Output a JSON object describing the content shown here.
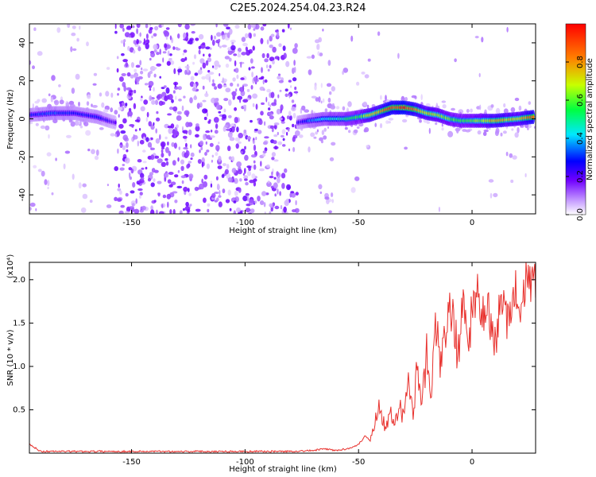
{
  "title": "C2E5.2024.254.04.23.R24",
  "chart_data": [
    {
      "type": "heatmap",
      "xlabel": "Height of straight line (km)",
      "ylabel": "Frequency (Hz)",
      "xlim": [
        -195,
        28
      ],
      "ylim": [
        -50,
        50
      ],
      "x_ticks": [
        -150,
        -100,
        -50,
        0
      ],
      "y_ticks": [
        -40,
        -20,
        0,
        20,
        40
      ],
      "grid": false,
      "noise_region_km": [
        -157,
        -77
      ],
      "ridge": {
        "x": [
          -195,
          -185,
          -175,
          -165,
          -160,
          -157,
          -77,
          -72,
          -65,
          -55,
          -50,
          -45,
          -40,
          -35,
          -30,
          -25,
          -20,
          -15,
          -10,
          -5,
          0,
          10,
          20,
          27
        ],
        "freq": [
          2,
          3,
          3,
          1,
          -1,
          -2,
          -2,
          -1,
          0,
          0,
          1,
          2,
          4,
          6,
          6,
          5,
          3,
          2,
          0,
          -1,
          -1,
          -1,
          0,
          1
        ],
        "peak_amplitude": [
          0.3,
          0.35,
          0.3,
          0.3,
          0.25,
          0.2,
          0.25,
          0.35,
          0.45,
          0.55,
          0.6,
          0.75,
          0.85,
          0.95,
          0.98,
          0.85,
          0.75,
          0.7,
          0.65,
          0.6,
          0.65,
          0.8,
          0.75,
          0.95
        ]
      },
      "colorbar": {
        "label": "Normalized spectral amplitude",
        "range": [
          0,
          1
        ],
        "ticks": [
          "0.0",
          "0.2",
          "0.4",
          "0.6",
          "0.8"
        ],
        "stops": [
          "#ffffff",
          "#c8a0ff",
          "#7000ff",
          "#0000ff",
          "#00e8ff",
          "#00ff40",
          "#c8ff00",
          "#ff8000",
          "#ff0000"
        ]
      }
    },
    {
      "type": "line",
      "xlabel": "Height of straight line (km)",
      "ylabel": "SNR (10 * v/v)",
      "y_multiplier": "(x10⁴)",
      "xlim": [
        -195,
        28
      ],
      "ylim": [
        0,
        2.2
      ],
      "x_ticks": [
        -150,
        -100,
        -50,
        0
      ],
      "y_ticks": [
        "0.5",
        "1.0",
        "1.5",
        "2.0"
      ],
      "grid": false,
      "series": [
        {
          "color": "#e8302c",
          "x": [
            -195,
            -190,
            -180,
            -170,
            -160,
            -150,
            -140,
            -130,
            -120,
            -110,
            -100,
            -90,
            -80,
            -70,
            -65,
            -60,
            -55,
            -50,
            -47,
            -45,
            -43,
            -41,
            -40,
            -38,
            -36,
            -34,
            -32,
            -30,
            -28,
            -26,
            -24,
            -22,
            -20,
            -18,
            -16,
            -14,
            -12,
            -10,
            -8,
            -6,
            -4,
            -2,
            0,
            2,
            4,
            6,
            8,
            10,
            12,
            14,
            16,
            18,
            20,
            22,
            24,
            26,
            28
          ],
          "y": [
            0.1,
            0.02,
            0.02,
            0.02,
            0.02,
            0.02,
            0.02,
            0.02,
            0.02,
            0.02,
            0.02,
            0.02,
            0.02,
            0.03,
            0.05,
            0.03,
            0.05,
            0.1,
            0.2,
            0.15,
            0.35,
            0.55,
            0.45,
            0.3,
            0.55,
            0.35,
            0.5,
            0.45,
            0.75,
            0.5,
            0.95,
            0.7,
            1.2,
            0.6,
            1.55,
            0.9,
            1.3,
            1.7,
            1.5,
            1.1,
            1.85,
            1.3,
            1.6,
            1.9,
            1.45,
            1.7,
            1.55,
            1.2,
            1.6,
            1.75,
            1.5,
            1.95,
            1.8,
            1.7,
            2.0,
            1.9,
            2.05
          ]
        }
      ]
    }
  ]
}
